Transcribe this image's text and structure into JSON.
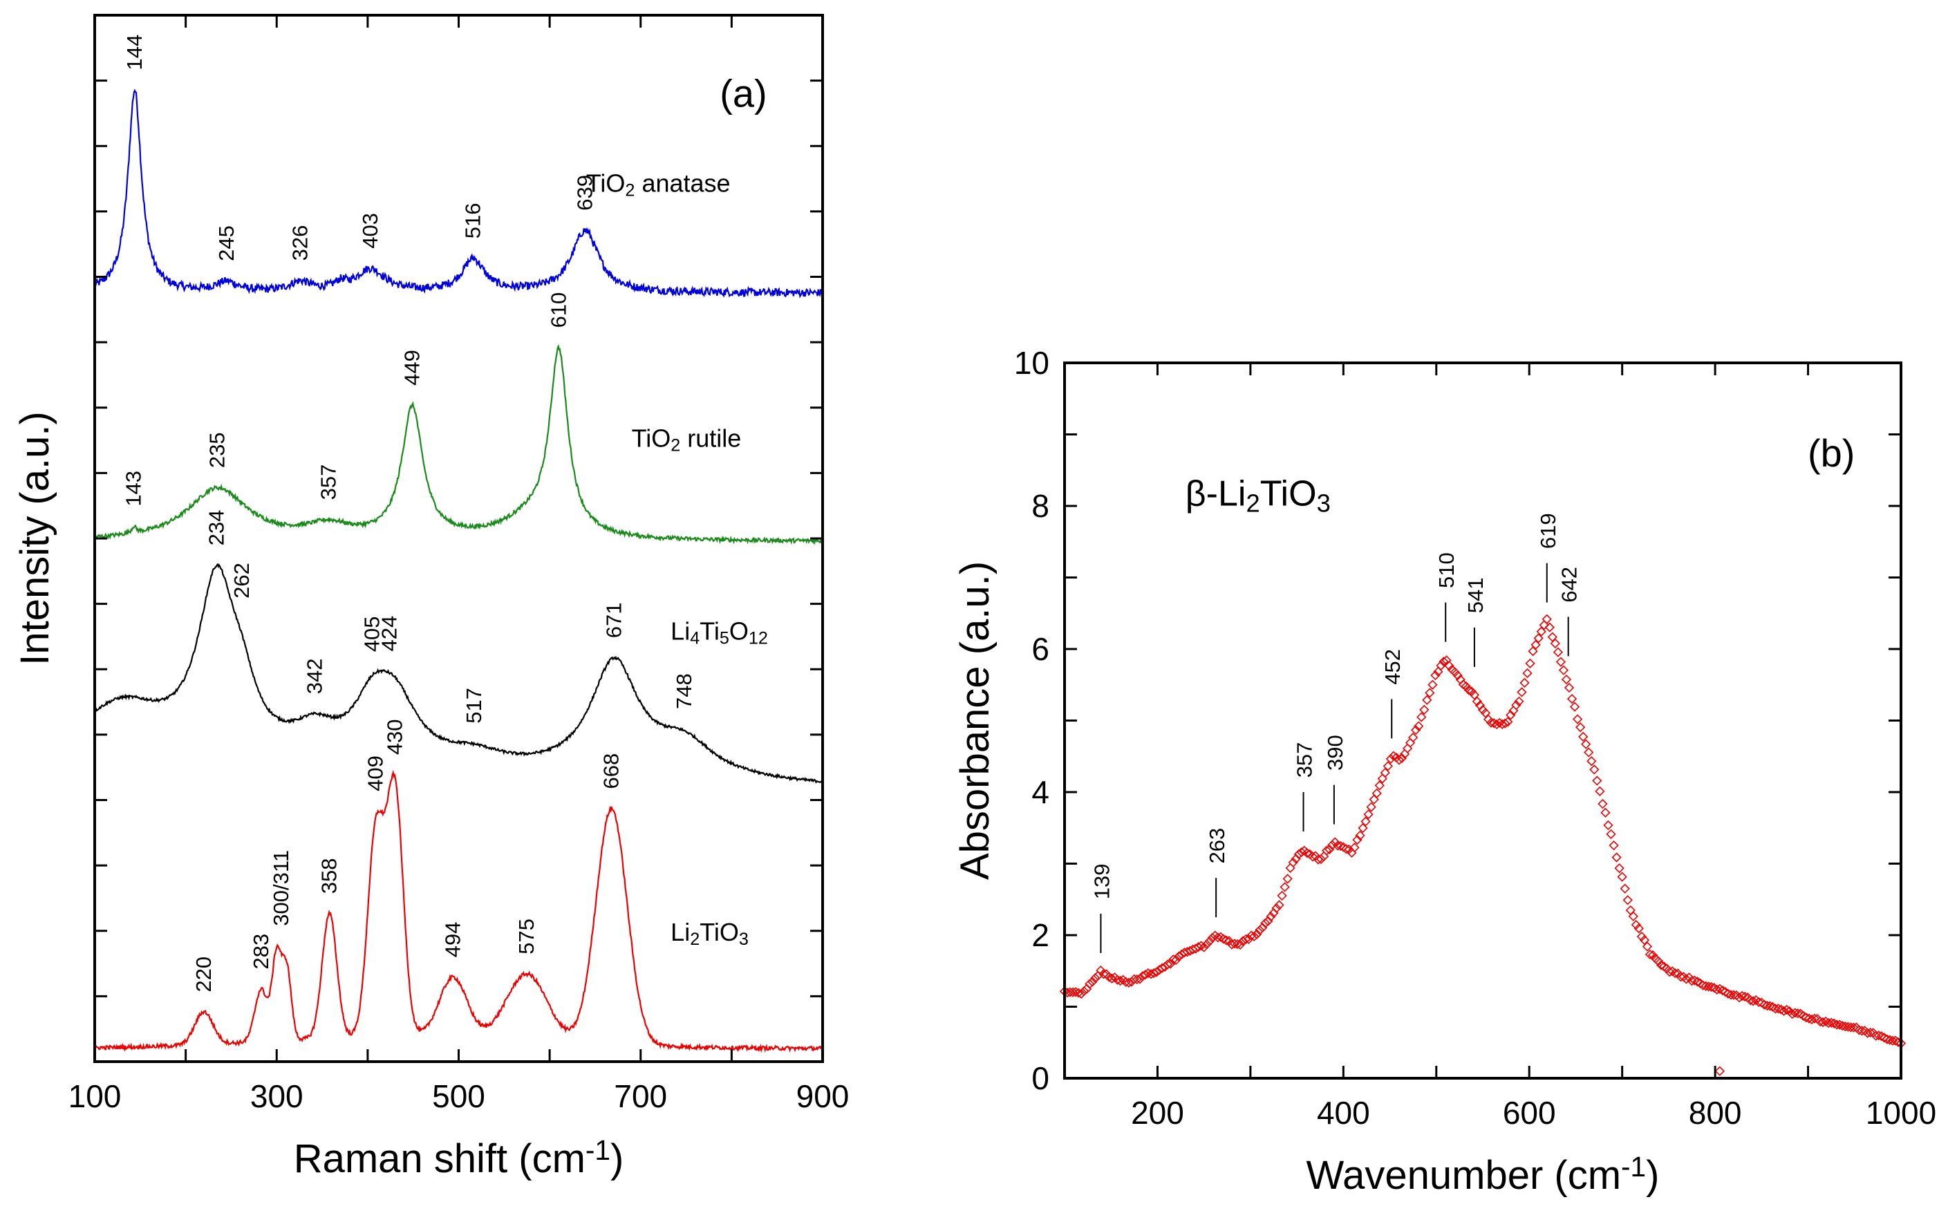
{
  "chart_data": [
    {
      "type": "line",
      "panel_tag": "(a)",
      "xlabel_parts": [
        "Raman shift (cm",
        "-1",
        ")"
      ],
      "ylabel": "Intensity (a.u.)",
      "xlim": [
        100,
        900
      ],
      "ylim": [
        0,
        16
      ],
      "xticks": [
        100,
        300,
        500,
        700,
        900
      ],
      "xtick_labels": [
        "100",
        "300",
        "500",
        "700",
        "900"
      ],
      "y_tick_labels_shown": false,
      "grid": false,
      "series": [
        {
          "name_parts": [
            "TiO",
            "2",
            " anatase"
          ],
          "color": "#0000dd",
          "shape": "lorentzian",
          "baseline": [
            11.75,
            11.75
          ],
          "noise": 0.06,
          "peaks": [
            [
              144,
              3.1,
              9
            ],
            [
              245,
              0.15,
              15
            ],
            [
              326,
              0.15,
              15
            ],
            [
              370,
              0.1,
              8
            ],
            [
              403,
              0.35,
              20
            ],
            [
              516,
              0.5,
              15
            ],
            [
              639,
              0.95,
              18
            ]
          ],
          "peak_labels": [
            "144",
            "245",
            "326",
            "403",
            "516",
            "639"
          ],
          "peak_label_x": [
            144,
            245,
            326,
            403,
            516,
            639
          ]
        },
        {
          "name_parts": [
            "TiO",
            "2",
            " rutile"
          ],
          "color": "#1a8a1a",
          "shape": "lorentzian",
          "baseline": [
            7.95,
            7.95
          ],
          "noise": 0.03,
          "peaks": [
            [
              143,
              0.1,
              3
            ],
            [
              235,
              0.8,
              40
            ],
            [
              357,
              0.2,
              30
            ],
            [
              449,
              2.0,
              14
            ],
            [
              580,
              0.3,
              40
            ],
            [
              610,
              2.75,
              12
            ]
          ],
          "peak_labels": [
            "143",
            "235",
            "357",
            "449",
            "610"
          ],
          "peak_label_x": [
            143,
            235,
            357,
            449,
            610
          ]
        },
        {
          "name_parts": [
            "Li",
            "4",
            "Ti",
            "5",
            "O",
            "12"
          ],
          "color": "#000000",
          "shape": "lorentzian",
          "baseline": [
            4.6,
            4.2
          ],
          "noise": 0.02,
          "peaks": [
            [
              130,
              0.8,
              60
            ],
            [
              234,
              2.6,
              25
            ],
            [
              262,
              0.6,
              18
            ],
            [
              342,
              0.4,
              30
            ],
            [
              405,
              0.7,
              25
            ],
            [
              430,
              0.9,
              30
            ],
            [
              517,
              0.2,
              40
            ],
            [
              671,
              1.7,
              32
            ],
            [
              748,
              0.5,
              40
            ]
          ],
          "peak_labels": [
            "234",
            "262",
            "342",
            "405",
            "424",
            "517",
            "671",
            "748"
          ],
          "peak_label_x": [
            234,
            262,
            342,
            405,
            424,
            517,
            671,
            748
          ]
        },
        {
          "name_parts": [
            "Li",
            "2",
            "TiO",
            "3"
          ],
          "color": "#ee0000",
          "shape": "gaussian",
          "baseline": [
            0.2,
            0.2
          ],
          "noise": 0.03,
          "peaks": [
            [
              220,
              0.5,
              10
            ],
            [
              283,
              0.8,
              7
            ],
            [
              300,
              1.3,
              5
            ],
            [
              311,
              1.1,
              5
            ],
            [
              358,
              1.9,
              8
            ],
            [
              409,
              3.1,
              9
            ],
            [
              430,
              3.75,
              9
            ],
            [
              450,
              0.2,
              150
            ],
            [
              494,
              0.9,
              15
            ],
            [
              575,
              1.0,
              22
            ],
            [
              668,
              3.6,
              17
            ]
          ],
          "peak_labels": [
            "220",
            "283",
            "300/311",
            "358",
            "409",
            "430",
            "494",
            "575",
            "668"
          ],
          "peak_label_x": [
            220,
            283,
            305,
            358,
            409,
            430,
            494,
            575,
            668
          ]
        }
      ]
    },
    {
      "type": "scatter",
      "panel_tag": "(b)",
      "compound_parts": [
        "β-Li",
        "2",
        "TiO",
        "3"
      ],
      "xlabel_parts": [
        "Wavenumber (cm",
        "-1",
        ")"
      ],
      "ylabel": "Absorbance (a.u.)",
      "xlim": [
        100,
        1000
      ],
      "ylim": [
        0,
        10
      ],
      "xticks": [
        200,
        400,
        600,
        800,
        1000
      ],
      "xtick_labels": [
        "200",
        "400",
        "600",
        "800",
        "1000"
      ],
      "yticks": [
        0,
        2,
        4,
        6,
        8,
        10
      ],
      "ytick_labels": [
        "0",
        "2",
        "4",
        "6",
        "8",
        "10"
      ],
      "marker": "open-diamond",
      "color": "#ee0000",
      "grid": false,
      "x": [
        100,
        120,
        139,
        150,
        170,
        200,
        230,
        250,
        263,
        285,
        310,
        330,
        345,
        357,
        375,
        390,
        410,
        430,
        452,
        462,
        480,
        500,
        510,
        530,
        541,
        560,
        575,
        590,
        605,
        619,
        630,
        642,
        655,
        670,
        690,
        710,
        730,
        750,
        770,
        800,
        850,
        900,
        950,
        1000
      ],
      "y": [
        1.2,
        1.2,
        1.5,
        1.4,
        1.35,
        1.5,
        1.75,
        1.85,
        2.0,
        1.85,
        2.05,
        2.4,
        3.0,
        3.2,
        3.05,
        3.3,
        3.15,
        3.8,
        4.5,
        4.45,
        4.9,
        5.65,
        5.85,
        5.5,
        5.35,
        4.95,
        4.95,
        5.3,
        6.0,
        6.4,
        6.0,
        5.5,
        4.9,
        4.3,
        3.3,
        2.3,
        1.75,
        1.5,
        1.4,
        1.25,
        1.05,
        0.85,
        0.7,
        0.5
      ],
      "outliers": [
        [
          805,
          0.1
        ]
      ],
      "peak_labels": [
        "139",
        "263",
        "357",
        "390",
        "452",
        "510",
        "541",
        "619",
        "642"
      ],
      "peak_label_x": [
        139,
        263,
        357,
        390,
        452,
        510,
        541,
        619,
        642
      ]
    }
  ]
}
